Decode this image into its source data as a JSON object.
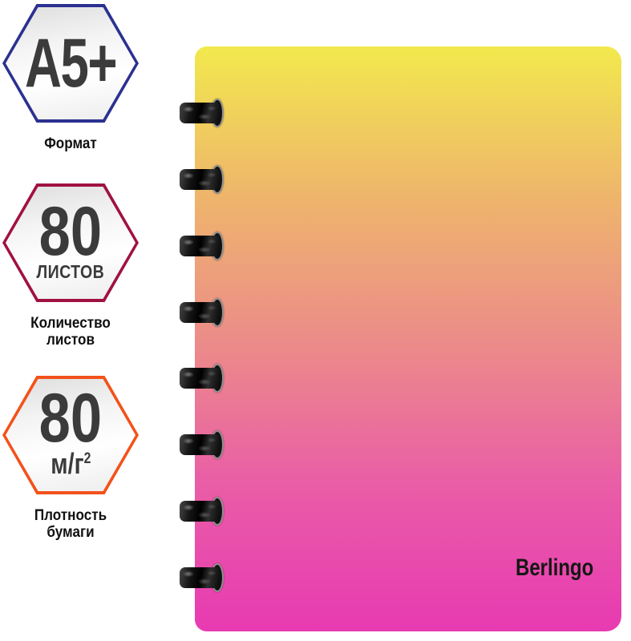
{
  "background_color": "#ffffff",
  "badges": [
    {
      "value": "A5+",
      "unit": "",
      "unit_sup": "",
      "label_line1": "Формат",
      "label_line2": "",
      "border_color": "#2b3190"
    },
    {
      "value": "80",
      "unit": "ЛИСТОВ",
      "unit_sup": "",
      "label_line1": "Количество",
      "label_line2": "листов",
      "border_color": "#a01240"
    },
    {
      "value": "80",
      "unit": "м/г",
      "unit_sup": "2",
      "label_line1": "Плотность бумаги",
      "label_line2": "",
      "border_color": "#f2521b"
    }
  ],
  "notebook": {
    "brand": "Berlingo",
    "binding_rings": 8,
    "cover_gradient": [
      "#f2e94d",
      "#eeb46c",
      "#ec8b8a",
      "#e95da6",
      "#e83ab2"
    ],
    "value_text_color": "#3b3b3b",
    "caption_text_color": "#101010"
  }
}
